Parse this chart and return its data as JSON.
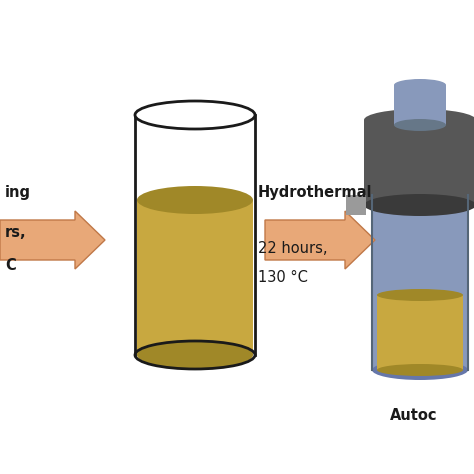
{
  "bg_color": "#ffffff",
  "liquid_color": "#C8A840",
  "liquid_dark": "#A08828",
  "beaker_outline": "#1a1a1a",
  "arrow_color": "#E8A878",
  "arrow_edge_color": "#C07848",
  "autoclave_body_color": "#8899BB",
  "autoclave_body_dark": "#6677AA",
  "autoclave_lid_color": "#575757",
  "autoclave_lid_dark": "#3a3a3a",
  "autoclave_cap_color": "#8899BB",
  "autoclave_flange_color": "#9a9a9a",
  "text_color": "#1a1a1a",
  "hydrothermal_line1": "Hydrothermal",
  "hydrothermal_line2": "22 hours,",
  "hydrothermal_line3": "130 °C",
  "left_text1": "ing",
  "left_text2": "rs,",
  "left_text3": "C",
  "autoclave_label": "Autoc",
  "font_size": 10.5
}
